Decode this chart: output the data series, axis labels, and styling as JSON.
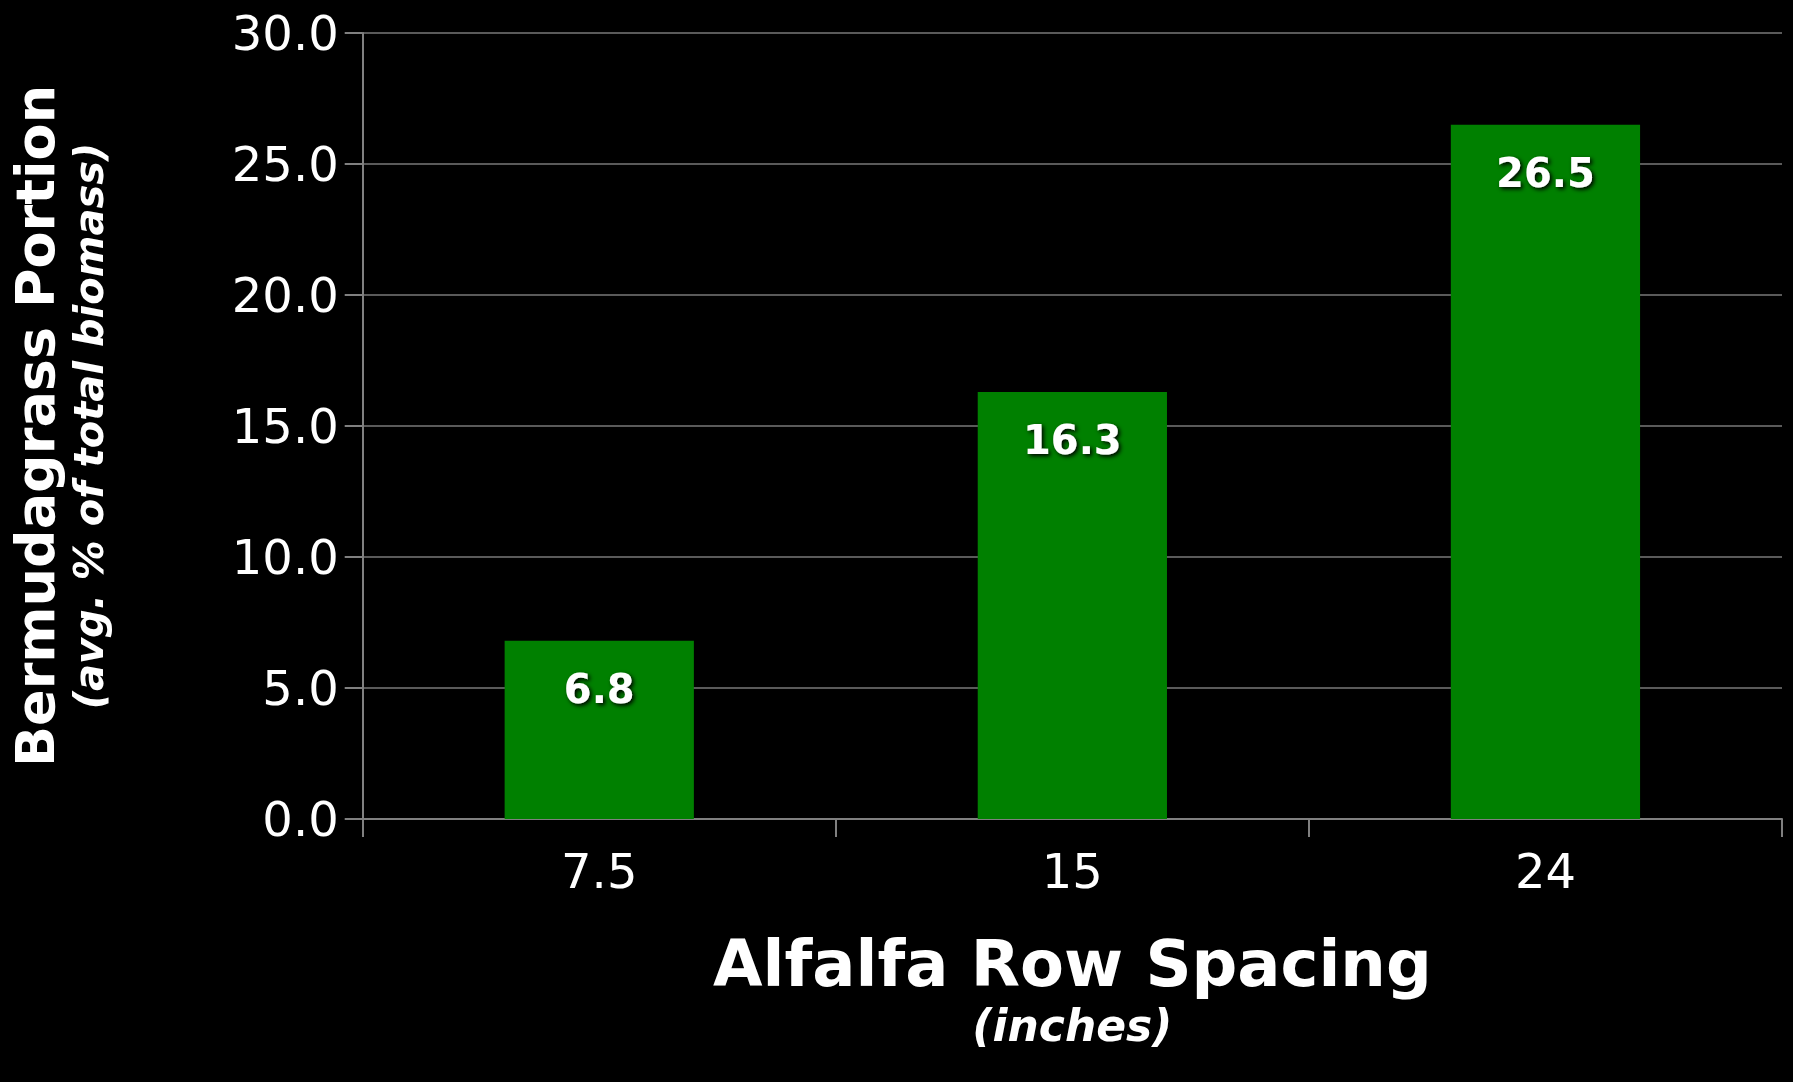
{
  "chart_data": {
    "type": "bar",
    "xlabel": "Alfalfa Row Spacing\n(inches)",
    "ylabel": "Bermudagrass Portion\n(avg. % of total biomass)",
    "categories": [
      "7.5",
      "15",
      "24"
    ],
    "values": [
      6.8,
      16.3,
      26.5
    ],
    "color": "#008000",
    "ylim": [
      0,
      30
    ],
    "yticks": [
      {
        "value": 0,
        "label": "0.0"
      },
      {
        "value": 5,
        "label": "5.0"
      },
      {
        "value": 10,
        "label": "10.0"
      },
      {
        "value": 15,
        "label": "15.0"
      },
      {
        "value": 20,
        "label": "20.0"
      },
      {
        "value": 25,
        "label": "25.0"
      },
      {
        "value": 30,
        "label": "30.0"
      }
    ],
    "grid": "y",
    "data_labels": true
  }
}
